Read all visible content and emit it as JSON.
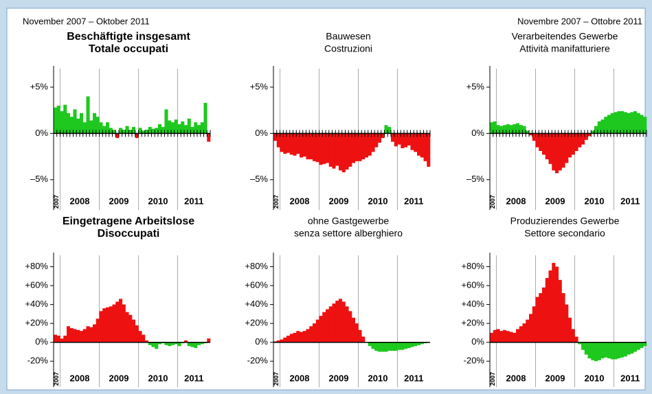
{
  "header": {
    "left": "November 2007 – Oktober 2011",
    "right": "Novembre 2007 – Ottobre 2011"
  },
  "chart_data": [
    {
      "type": "bar",
      "title": "Beschäftigte insgesamt",
      "subtitle": "Totale occupati",
      "bold": true,
      "categories": [
        "2007",
        null,
        "2008",
        null,
        null,
        null,
        null,
        null,
        null,
        null,
        null,
        null,
        null,
        null,
        "2009",
        null,
        null,
        null,
        null,
        null,
        null,
        null,
        null,
        null,
        null,
        null,
        "2010",
        null,
        null,
        null,
        null,
        null,
        null,
        null,
        null,
        null,
        null,
        null,
        "2011",
        null,
        null,
        null,
        null,
        null,
        null,
        null,
        null,
        null
      ],
      "values": [
        2.8,
        3.0,
        2.4,
        3.1,
        2.2,
        1.8,
        2.6,
        1.6,
        2.2,
        1.2,
        4.0,
        1.4,
        2.2,
        1.8,
        1.2,
        0.8,
        1.2,
        0.6,
        0.4,
        -0.5,
        0.6,
        0.4,
        0.8,
        0.4,
        0.7,
        -0.5,
        0.6,
        0.3,
        0.4,
        0.7,
        0.5,
        0.6,
        1.0,
        0.7,
        2.6,
        1.4,
        1.2,
        1.5,
        1.0,
        1.3,
        0.9,
        1.6,
        0.7,
        1.2,
        0.9,
        1.2,
        3.3,
        -0.9
      ],
      "positive_color": "#1ec81e",
      "negative_color": "#ee1111",
      "ylim": [
        -6.5,
        7
      ],
      "yticks": [
        {
          "value": 5,
          "label": "+5%"
        },
        {
          "value": 0,
          "label": "0%"
        },
        {
          "value": -5,
          "label": "–5%"
        }
      ]
    },
    {
      "type": "bar",
      "title": "Bauwesen",
      "subtitle": "Costruzioni",
      "bold": false,
      "categories": [
        "2007",
        null,
        "2008",
        null,
        null,
        null,
        null,
        null,
        null,
        null,
        null,
        null,
        null,
        null,
        "2009",
        null,
        null,
        null,
        null,
        null,
        null,
        null,
        null,
        null,
        null,
        null,
        "2010",
        null,
        null,
        null,
        null,
        null,
        null,
        null,
        null,
        null,
        null,
        null,
        "2011",
        null,
        null,
        null,
        null,
        null,
        null,
        null,
        null,
        null
      ],
      "values": [
        -0.8,
        -1.5,
        -2.0,
        -2.2,
        -2.1,
        -2.3,
        -2.4,
        -2.2,
        -2.6,
        -2.5,
        -2.8,
        -2.8,
        -3.0,
        -3.1,
        -3.4,
        -3.3,
        -3.2,
        -3.6,
        -3.8,
        -3.5,
        -4.0,
        -4.2,
        -3.9,
        -3.6,
        -3.2,
        -3.0,
        -3.0,
        -2.8,
        -2.6,
        -2.4,
        -2.0,
        -1.5,
        -1.0,
        -0.5,
        0.9,
        0.7,
        -0.9,
        -1.4,
        -1.2,
        -1.6,
        -1.5,
        -1.3,
        -1.8,
        -2.0,
        -2.4,
        -2.6,
        -3.0,
        -3.6
      ],
      "positive_color": "#1ec81e",
      "negative_color": "#ee1111",
      "ylim": [
        -6.5,
        7
      ],
      "yticks": [
        {
          "value": 5,
          "label": "+5%"
        },
        {
          "value": 0,
          "label": "0%"
        },
        {
          "value": -5,
          "label": "–5%"
        }
      ]
    },
    {
      "type": "bar",
      "title": "Verarbeitendes Gewerbe",
      "subtitle": "Attività manifatturiere",
      "bold": false,
      "categories": [
        "2007",
        null,
        "2008",
        null,
        null,
        null,
        null,
        null,
        null,
        null,
        null,
        null,
        null,
        null,
        "2009",
        null,
        null,
        null,
        null,
        null,
        null,
        null,
        null,
        null,
        null,
        null,
        "2010",
        null,
        null,
        null,
        null,
        null,
        null,
        null,
        null,
        null,
        null,
        null,
        "2011",
        null,
        null,
        null,
        null,
        null,
        null,
        null,
        null,
        null
      ],
      "values": [
        1.2,
        1.3,
        0.9,
        0.8,
        0.9,
        1.0,
        0.9,
        1.0,
        1.1,
        0.9,
        0.8,
        0.3,
        -0.2,
        -0.8,
        -1.5,
        -1.9,
        -2.3,
        -2.8,
        -3.3,
        -4.0,
        -4.3,
        -4.0,
        -3.7,
        -3.2,
        -2.6,
        -2.3,
        -1.9,
        -1.5,
        -1.2,
        -0.7,
        -0.3,
        0.3,
        0.8,
        1.3,
        1.5,
        1.8,
        2.0,
        2.2,
        2.3,
        2.4,
        2.4,
        2.3,
        2.2,
        2.3,
        2.4,
        2.2,
        2.0,
        1.8
      ],
      "positive_color": "#1ec81e",
      "negative_color": "#ee1111",
      "ylim": [
        -6.5,
        7
      ],
      "yticks": [
        {
          "value": 5,
          "label": "+5%"
        },
        {
          "value": 0,
          "label": "0%"
        },
        {
          "value": -5,
          "label": "–5%"
        }
      ]
    },
    {
      "type": "bar",
      "title": "Eingetragene Arbeitslose",
      "subtitle": "Disoccupati",
      "bold": true,
      "categories": [
        "2007",
        null,
        "2008",
        null,
        null,
        null,
        null,
        null,
        null,
        null,
        null,
        null,
        null,
        null,
        "2009",
        null,
        null,
        null,
        null,
        null,
        null,
        null,
        null,
        null,
        null,
        null,
        "2010",
        null,
        null,
        null,
        null,
        null,
        null,
        null,
        null,
        null,
        null,
        null,
        "2011",
        null,
        null,
        null,
        null,
        null,
        null,
        null,
        null,
        null
      ],
      "values": [
        8,
        7,
        4,
        7,
        17,
        15,
        14,
        13,
        12,
        14,
        17,
        16,
        19,
        25,
        33,
        36,
        37,
        38,
        40,
        43,
        46,
        40,
        32,
        29,
        24,
        18,
        12,
        8,
        2,
        -3,
        -5,
        -7,
        -2,
        -1,
        -3,
        -4,
        -3,
        -2,
        -4,
        -1,
        2,
        -4,
        -5,
        -6,
        -3,
        -2,
        -1,
        4
      ],
      "positive_color": "#ee1111",
      "negative_color": "#1ec81e",
      "ylim": [
        -30,
        92
      ],
      "yticks": [
        {
          "value": 80,
          "label": "+80%"
        },
        {
          "value": 60,
          "label": "+60%"
        },
        {
          "value": 40,
          "label": "+40%"
        },
        {
          "value": 20,
          "label": "+20%"
        },
        {
          "value": 0,
          "label": "0%"
        },
        {
          "value": -20,
          "label": "-20%"
        }
      ]
    },
    {
      "type": "bar",
      "title": "ohne Gastgewerbe",
      "subtitle": "senza settore alberghiero",
      "bold": false,
      "categories": [
        "2007",
        null,
        "2008",
        null,
        null,
        null,
        null,
        null,
        null,
        null,
        null,
        null,
        null,
        null,
        "2009",
        null,
        null,
        null,
        null,
        null,
        null,
        null,
        null,
        null,
        null,
        null,
        "2010",
        null,
        null,
        null,
        null,
        null,
        null,
        null,
        null,
        null,
        null,
        null,
        "2011",
        null,
        null,
        null,
        null,
        null,
        null,
        null,
        null,
        null
      ],
      "values": [
        1,
        2,
        3,
        5,
        7,
        9,
        10,
        12,
        11,
        12,
        14,
        17,
        20,
        24,
        28,
        32,
        35,
        38,
        41,
        44,
        46,
        43,
        38,
        33,
        26,
        20,
        13,
        6,
        0,
        -4,
        -7,
        -9,
        -10,
        -10,
        -10,
        -9,
        -9,
        -9,
        -8,
        -8,
        -7,
        -6,
        -5,
        -4,
        -3,
        -2,
        -1,
        0
      ],
      "positive_color": "#ee1111",
      "negative_color": "#1ec81e",
      "ylim": [
        -30,
        92
      ],
      "yticks": [
        {
          "value": 80,
          "label": "+80%"
        },
        {
          "value": 60,
          "label": "+60%"
        },
        {
          "value": 40,
          "label": "+40%"
        },
        {
          "value": 20,
          "label": "+20%"
        },
        {
          "value": 0,
          "label": "0%"
        },
        {
          "value": -20,
          "label": "-20%"
        }
      ]
    },
    {
      "type": "bar",
      "title": "Produzierendes Gewerbe",
      "subtitle": "Settore secondario",
      "bold": false,
      "categories": [
        "2007",
        null,
        "2008",
        null,
        null,
        null,
        null,
        null,
        null,
        null,
        null,
        null,
        null,
        null,
        "2009",
        null,
        null,
        null,
        null,
        null,
        null,
        null,
        null,
        null,
        null,
        null,
        "2010",
        null,
        null,
        null,
        null,
        null,
        null,
        null,
        null,
        null,
        null,
        null,
        "2011",
        null,
        null,
        null,
        null,
        null,
        null,
        null,
        null,
        null
      ],
      "values": [
        10,
        13,
        14,
        12,
        13,
        12,
        11,
        10,
        14,
        17,
        20,
        24,
        30,
        38,
        48,
        52,
        58,
        68,
        76,
        84,
        80,
        66,
        52,
        40,
        26,
        14,
        6,
        -2,
        -8,
        -13,
        -17,
        -19,
        -20,
        -19,
        -17,
        -16,
        -17,
        -18,
        -18,
        -17,
        -16,
        -15,
        -13,
        -12,
        -10,
        -8,
        -6,
        -4
      ],
      "positive_color": "#ee1111",
      "negative_color": "#1ec81e",
      "ylim": [
        -30,
        92
      ],
      "yticks": [
        {
          "value": 80,
          "label": "+80%"
        },
        {
          "value": 60,
          "label": "+60%"
        },
        {
          "value": 40,
          "label": "+40%"
        },
        {
          "value": 20,
          "label": "+20%"
        },
        {
          "value": 0,
          "label": "0%"
        },
        {
          "value": -20,
          "label": "-20%"
        }
      ]
    }
  ]
}
